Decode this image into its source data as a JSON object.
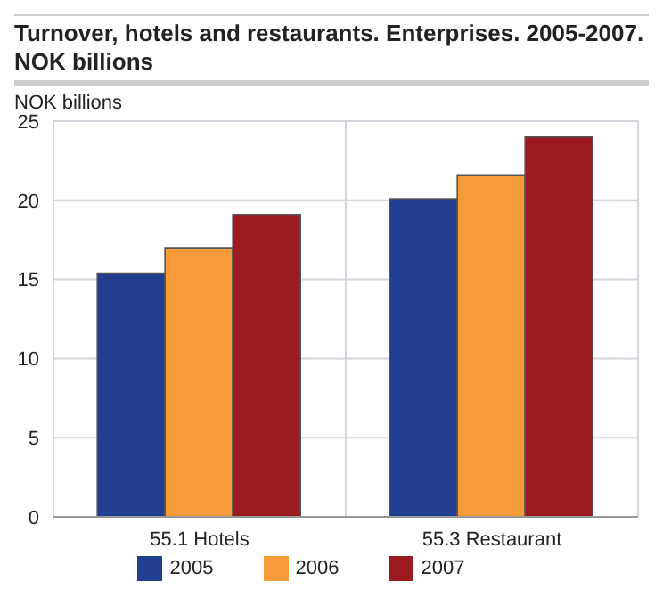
{
  "chart_data": {
    "type": "bar",
    "title": "Turnover, hotels and restaurants. Enterprises. 2005-2007. NOK billions",
    "ylabel": "NOK billions",
    "categories": [
      "55.1 Hotels",
      "55.3 Restaurant"
    ],
    "series": [
      {
        "name": "2005",
        "color": "#223f8f",
        "values": [
          15.4,
          20.1
        ]
      },
      {
        "name": "2006",
        "color": "#f59b38",
        "values": [
          17.0,
          21.6
        ]
      },
      {
        "name": "2007",
        "color": "#9a1b20",
        "values": [
          19.1,
          24.0
        ]
      }
    ],
    "ylim": [
      0,
      25
    ],
    "yticks": [
      0,
      5,
      10,
      15,
      20,
      25
    ],
    "grid": true,
    "legend": "bottom"
  }
}
